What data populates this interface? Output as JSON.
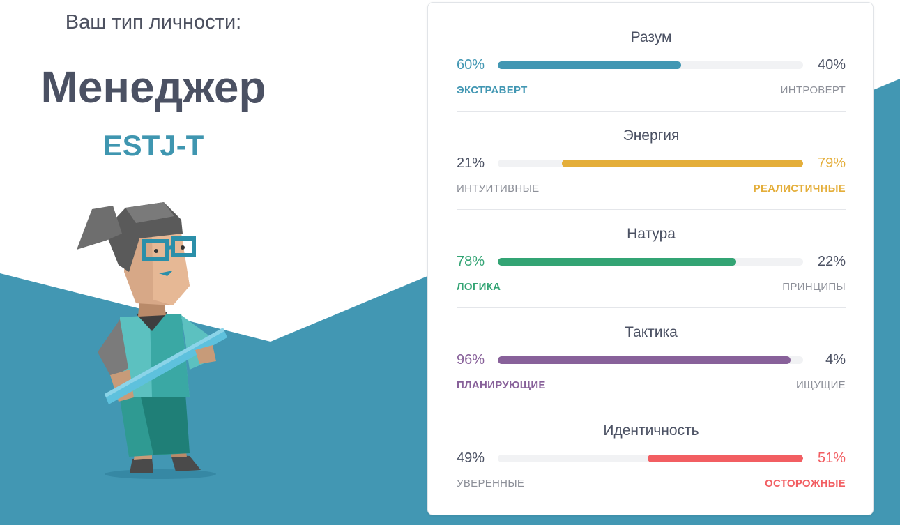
{
  "header": {
    "subtitle": "Ваш тип личности:",
    "type_name": "Менеджер",
    "type_code": "ESTJ-T"
  },
  "colors": {
    "background_accent": "#4297b3",
    "title": "#4b5163",
    "code": "#3f96b0"
  },
  "traits": [
    {
      "title": "Разум",
      "left_pct": "60%",
      "right_pct": "40%",
      "left_label": "ЭКСТРАВЕРТ",
      "right_label": "ИНТРОВЕРТ",
      "value": 60,
      "dominant": "left",
      "color": "#4297b3"
    },
    {
      "title": "Энергия",
      "left_pct": "21%",
      "right_pct": "79%",
      "left_label": "ИНТУИТИВНЫЕ",
      "right_label": "РЕАЛИСТИЧНЫЕ",
      "value": 79,
      "dominant": "right",
      "color": "#e4ae3a"
    },
    {
      "title": "Натура",
      "left_pct": "78%",
      "right_pct": "22%",
      "left_label": "ЛОГИКА",
      "right_label": "ПРИНЦИПЫ",
      "value": 78,
      "dominant": "left",
      "color": "#33a474"
    },
    {
      "title": "Тактика",
      "left_pct": "96%",
      "right_pct": "4%",
      "left_label": "ПЛАНИРУЮЩИЕ",
      "right_label": "ИЩУЩИЕ",
      "value": 96,
      "dominant": "left",
      "color": "#88619a"
    },
    {
      "title": "Идентичность",
      "left_pct": "49%",
      "right_pct": "51%",
      "left_label": "УВЕРЕННЫЕ",
      "right_label": "ОСТОРОЖНЫЕ",
      "value": 51,
      "dominant": "right",
      "color": "#f25e62"
    }
  ]
}
